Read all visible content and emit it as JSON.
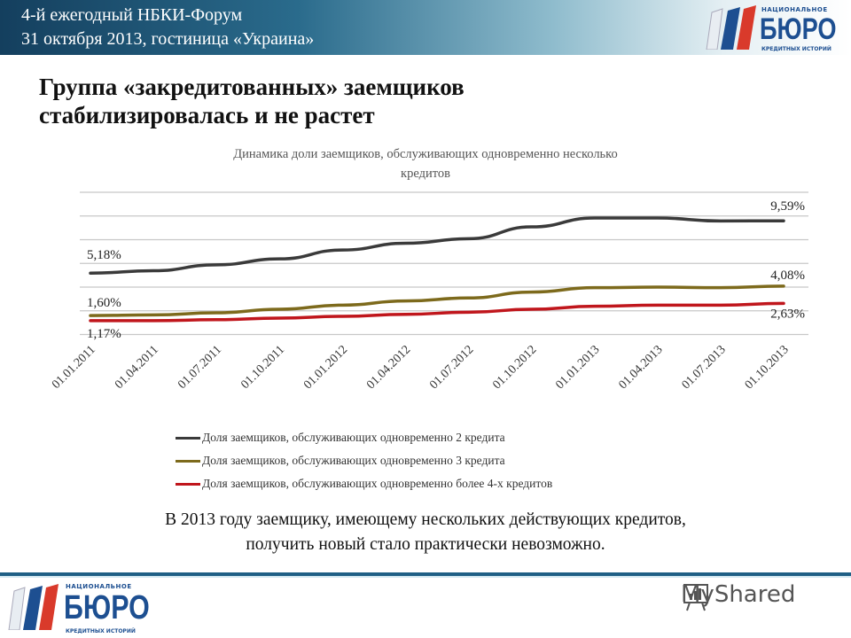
{
  "header": {
    "line1": "4-й ежегодный  НБКИ-Форум",
    "line2": "31 октября 2013, гостиница «Украина»"
  },
  "logo": {
    "top": "НАЦИОНАЛЬНОЕ",
    "main": "БЮРО",
    "bottom": "КРЕДИТНЫХ ИСТОРИЙ"
  },
  "slide_title": {
    "line1": "Группа «закредитованных» заемщиков",
    "line2": "стабилизировалась и не растет"
  },
  "chart_data": {
    "type": "line",
    "title": "Динамика доли заемщиков, обслуживающих одновременно несколько кредитов",
    "title_lines": [
      "Динамика доли заемщиков, обслуживающих одновременно несколько",
      "кредитов"
    ],
    "categories": [
      "01.01.2011",
      "01.04.2011",
      "01.07.2011",
      "01.10.2011",
      "01.01.2012",
      "01.04.2012",
      "01.07.2012",
      "01.10.2012",
      "01.01.2013",
      "01.04.2013",
      "01.07.2013",
      "01.10.2013"
    ],
    "ylim": [
      0,
      12
    ],
    "grid": true,
    "grid_step": 2,
    "y_tick_labels_shown": false,
    "legend": "bottom",
    "series": [
      {
        "name": "Доля заемщиков, обслуживающих одновременно  2 кредита",
        "color": "#3a3a3a",
        "values": [
          5.18,
          5.38,
          5.88,
          6.38,
          7.13,
          7.7,
          8.08,
          9.08,
          9.83,
          9.83,
          9.58,
          9.59
        ],
        "labels": {
          "first": "5,18%",
          "last": "9,59%"
        }
      },
      {
        "name": "Доля заемщиков, обслуживающих одновременно  3 кредита",
        "color": "#7d6a1c",
        "values": [
          1.6,
          1.65,
          1.83,
          2.13,
          2.48,
          2.83,
          3.08,
          3.58,
          3.95,
          4.0,
          3.95,
          4.08
        ],
        "labels": {
          "first": "1,60%",
          "last": "4,08%"
        }
      },
      {
        "name": "Доля заемщиков, обслуживающих одновременно  более 4-х кредитов",
        "color": "#c0161c",
        "values": [
          1.17,
          1.17,
          1.25,
          1.38,
          1.53,
          1.7,
          1.88,
          2.13,
          2.38,
          2.48,
          2.48,
          2.63
        ],
        "labels": {
          "first": "1,17%",
          "last": "2,63%"
        }
      }
    ]
  },
  "paragraph": {
    "line1": "В 2013 году заемщику, имеющему нескольких действующих кредитов,",
    "line2": "получить новый стало практически невозможно."
  },
  "watermark": "MyShared"
}
